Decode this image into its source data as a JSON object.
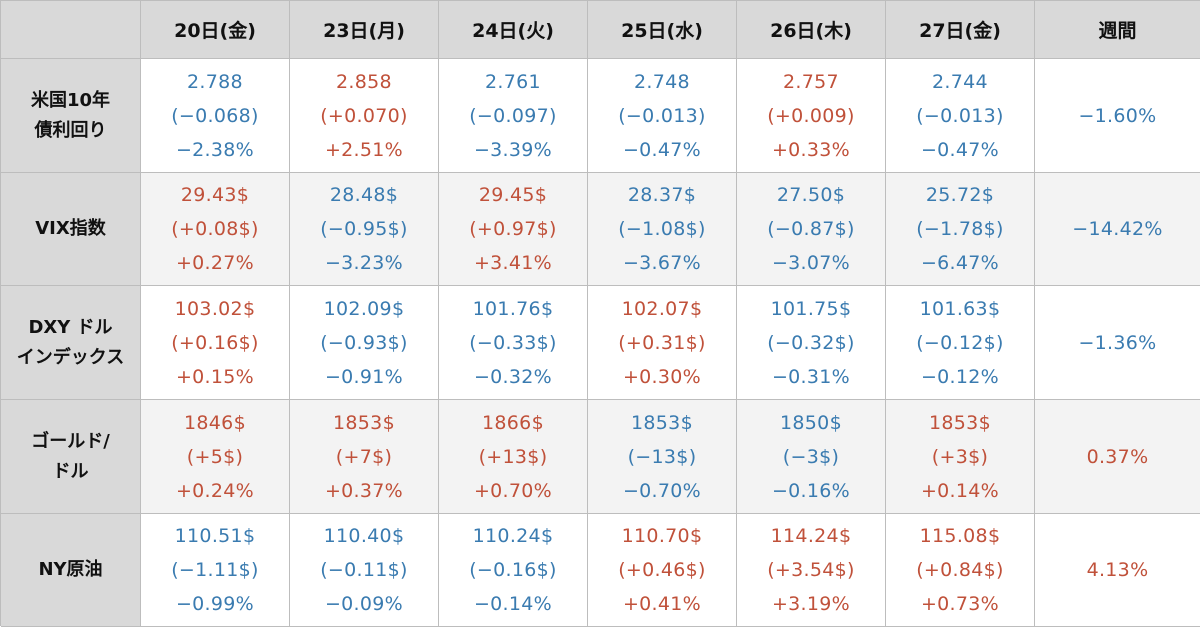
{
  "columns": [
    "20日(金)",
    "23日(月)",
    "24日(火)",
    "25日(水)",
    "26日(木)",
    "27日(金)",
    "週間"
  ],
  "rows": [
    {
      "label": [
        "米国10年",
        "債利回り"
      ],
      "shade": false,
      "cells": [
        {
          "color": "blue",
          "lines": [
            "2.788",
            "(−0.068)",
            "−2.38%"
          ]
        },
        {
          "color": "red",
          "lines": [
            "2.858",
            "(+0.070)",
            "+2.51%"
          ]
        },
        {
          "color": "blue",
          "lines": [
            "2.761",
            "(−0.097)",
            "−3.39%"
          ]
        },
        {
          "color": "blue",
          "lines": [
            "2.748",
            "(−0.013)",
            "−0.47%"
          ]
        },
        {
          "color": "red",
          "lines": [
            "2.757",
            "(+0.009)",
            "+0.33%"
          ]
        },
        {
          "color": "blue",
          "lines": [
            "2.744",
            "(−0.013)",
            "−0.47%"
          ]
        },
        {
          "color": "blue",
          "lines": [
            "−1.60%"
          ]
        }
      ]
    },
    {
      "label": [
        "VIX指数"
      ],
      "shade": true,
      "cells": [
        {
          "color": "red",
          "lines": [
            "29.43$",
            "(+0.08$)",
            "+0.27%"
          ]
        },
        {
          "color": "blue",
          "lines": [
            "28.48$",
            "(−0.95$)",
            "−3.23%"
          ]
        },
        {
          "color": "red",
          "lines": [
            "29.45$",
            "(+0.97$)",
            "+3.41%"
          ]
        },
        {
          "color": "blue",
          "lines": [
            "28.37$",
            "(−1.08$)",
            "−3.67%"
          ]
        },
        {
          "color": "blue",
          "lines": [
            "27.50$",
            "(−0.87$)",
            "−3.07%"
          ]
        },
        {
          "color": "blue",
          "lines": [
            "25.72$",
            "(−1.78$)",
            "−6.47%"
          ]
        },
        {
          "color": "blue",
          "lines": [
            "−14.42%"
          ]
        }
      ]
    },
    {
      "label": [
        "DXY ドル",
        "インデックス"
      ],
      "shade": false,
      "cells": [
        {
          "color": "red",
          "lines": [
            "103.02$",
            "(+0.16$)",
            "+0.15%"
          ]
        },
        {
          "color": "blue",
          "lines": [
            "102.09$",
            "(−0.93$)",
            "−0.91%"
          ]
        },
        {
          "color": "blue",
          "lines": [
            "101.76$",
            "(−0.33$)",
            "−0.32%"
          ]
        },
        {
          "color": "red",
          "lines": [
            "102.07$",
            "(+0.31$)",
            "+0.30%"
          ]
        },
        {
          "color": "blue",
          "lines": [
            "101.75$",
            "(−0.32$)",
            "−0.31%"
          ]
        },
        {
          "color": "blue",
          "lines": [
            "101.63$",
            "(−0.12$)",
            "−0.12%"
          ]
        },
        {
          "color": "blue",
          "lines": [
            "−1.36%"
          ]
        }
      ]
    },
    {
      "label": [
        "ゴールド/",
        "ドル"
      ],
      "shade": true,
      "cells": [
        {
          "color": "red",
          "lines": [
            "1846$",
            "(+5$)",
            "+0.24%"
          ]
        },
        {
          "color": "red",
          "lines": [
            "1853$",
            "(+7$)",
            "+0.37%"
          ]
        },
        {
          "color": "red",
          "lines": [
            "1866$",
            "(+13$)",
            "+0.70%"
          ]
        },
        {
          "color": "blue",
          "lines": [
            "1853$",
            "(−13$)",
            "−0.70%"
          ]
        },
        {
          "color": "blue",
          "lines": [
            "1850$",
            "(−3$)",
            "−0.16%"
          ]
        },
        {
          "color": "red",
          "lines": [
            "1853$",
            "(+3$)",
            "+0.14%"
          ]
        },
        {
          "color": "red",
          "lines": [
            "0.37%"
          ]
        }
      ]
    },
    {
      "label": [
        "NY原油"
      ],
      "shade": false,
      "cells": [
        {
          "color": "blue",
          "lines": [
            "110.51$",
            "(−1.11$)",
            "−0.99%"
          ]
        },
        {
          "color": "blue",
          "lines": [
            "110.40$",
            "(−0.11$)",
            "−0.09%"
          ]
        },
        {
          "color": "blue",
          "lines": [
            "110.24$",
            "(−0.16$)",
            "−0.14%"
          ]
        },
        {
          "color": "red",
          "lines": [
            "110.70$",
            "(+0.46$)",
            "+0.41%"
          ]
        },
        {
          "color": "red",
          "lines": [
            "114.24$",
            "(+3.54$)",
            "+3.19%"
          ]
        },
        {
          "color": "red",
          "lines": [
            "115.08$",
            "(+0.84$)",
            "+0.73%"
          ]
        },
        {
          "color": "red",
          "lines": [
            "4.13%"
          ]
        }
      ]
    }
  ],
  "colors": {
    "up": "#c0513a",
    "down": "#3a7bb0",
    "header_bg": "#d9d9d9",
    "shade_bg": "#f3f3f3"
  }
}
